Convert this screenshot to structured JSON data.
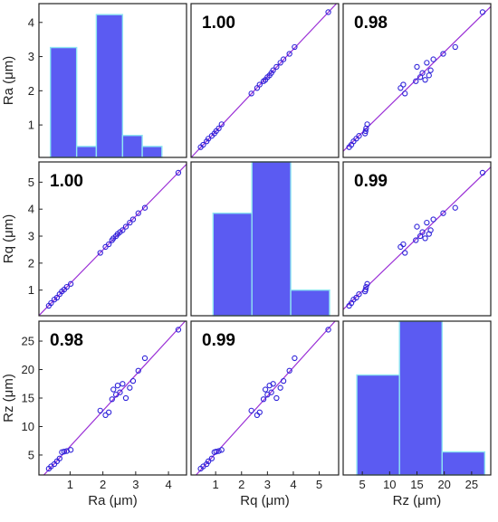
{
  "colors": {
    "bar_fill": "#5b5bf2",
    "bar_edge": "#8fe6f2",
    "marker": "#2e22d9",
    "fit_line": "#9a2fd6",
    "frame": "#222222"
  },
  "chart_data": {
    "type": "scatter-matrix",
    "variables": [
      "Ra",
      "Rq",
      "Rz"
    ],
    "axis_labels": {
      "x": [
        "Ra (μm)",
        "Rq (μm)",
        "Rz (μm)"
      ],
      "y": [
        "Ra (μm)",
        "Rq (μm)",
        "Rz (μm)"
      ]
    },
    "ranges": {
      "Ra": [
        0.05,
        4.55
      ],
      "Rq": [
        0.05,
        5.75
      ],
      "Rz": [
        1.5,
        28.5
      ]
    },
    "ticks": {
      "Ra": [
        1,
        2,
        3,
        4
      ],
      "Rq": [
        1,
        2,
        3,
        4,
        5
      ],
      "Rz": [
        5,
        10,
        15,
        20,
        25
      ]
    },
    "correlations": [
      {
        "row": 0,
        "col": 1,
        "label": "1.00"
      },
      {
        "row": 0,
        "col": 2,
        "label": "0.98"
      },
      {
        "row": 1,
        "col": 0,
        "label": "1.00"
      },
      {
        "row": 1,
        "col": 2,
        "label": "0.99"
      },
      {
        "row": 2,
        "col": 0,
        "label": "0.98"
      },
      {
        "row": 2,
        "col": 1,
        "label": "0.99"
      }
    ],
    "histograms": [
      {
        "variable": "Ra",
        "edges": [
          0.4,
          1.2,
          1.8,
          2.6,
          3.2,
          3.8
        ],
        "counts": [
          10,
          1,
          13,
          2,
          1
        ],
        "count_max": 14
      },
      {
        "variable": "Rq",
        "edges": [
          0.9,
          2.4,
          3.9,
          5.4
        ],
        "counts": [
          12,
          18,
          3
        ],
        "count_max": 18
      },
      {
        "variable": "Rz",
        "edges": [
          4.0,
          11.8,
          19.6,
          27.4
        ],
        "counts": [
          13,
          20,
          3
        ],
        "count_max": 20
      }
    ],
    "samples": [
      {
        "Ra": 0.35,
        "Rq": 0.42,
        "Rz": 2.6
      },
      {
        "Ra": 0.42,
        "Rq": 0.52,
        "Rz": 3.0
      },
      {
        "Ra": 0.52,
        "Rq": 0.65,
        "Rz": 3.4
      },
      {
        "Ra": 0.6,
        "Rq": 0.72,
        "Rz": 3.9
      },
      {
        "Ra": 0.68,
        "Rq": 0.85,
        "Rz": 4.4
      },
      {
        "Ra": 0.75,
        "Rq": 0.95,
        "Rz": 5.5
      },
      {
        "Ra": 0.82,
        "Rq": 1.02,
        "Rz": 5.6
      },
      {
        "Ra": 0.9,
        "Rq": 1.12,
        "Rz": 5.7
      },
      {
        "Ra": 1.02,
        "Rq": 1.23,
        "Rz": 5.9
      },
      {
        "Ra": 1.92,
        "Rq": 2.38,
        "Rz": 12.8
      },
      {
        "Ra": 2.08,
        "Rq": 2.6,
        "Rz": 12.0
      },
      {
        "Ra": 2.18,
        "Rq": 2.7,
        "Rz": 12.5
      },
      {
        "Ra": 2.28,
        "Rq": 2.85,
        "Rz": 14.8
      },
      {
        "Ra": 2.32,
        "Rq": 2.92,
        "Rz": 16.5
      },
      {
        "Ra": 2.4,
        "Rq": 3.0,
        "Rz": 15.6
      },
      {
        "Ra": 2.45,
        "Rq": 3.08,
        "Rz": 17.2
      },
      {
        "Ra": 2.52,
        "Rq": 3.15,
        "Rz": 16.0
      },
      {
        "Ra": 2.6,
        "Rq": 3.22,
        "Rz": 17.5
      },
      {
        "Ra": 2.7,
        "Rq": 3.35,
        "Rz": 15.0
      },
      {
        "Ra": 2.82,
        "Rq": 3.5,
        "Rz": 16.8
      },
      {
        "Ra": 2.92,
        "Rq": 3.62,
        "Rz": 18.0
      },
      {
        "Ra": 3.08,
        "Rq": 3.85,
        "Rz": 19.8
      },
      {
        "Ra": 3.28,
        "Rq": 4.05,
        "Rz": 22.0
      },
      {
        "Ra": 4.3,
        "Rq": 5.35,
        "Rz": 27.0
      }
    ]
  }
}
